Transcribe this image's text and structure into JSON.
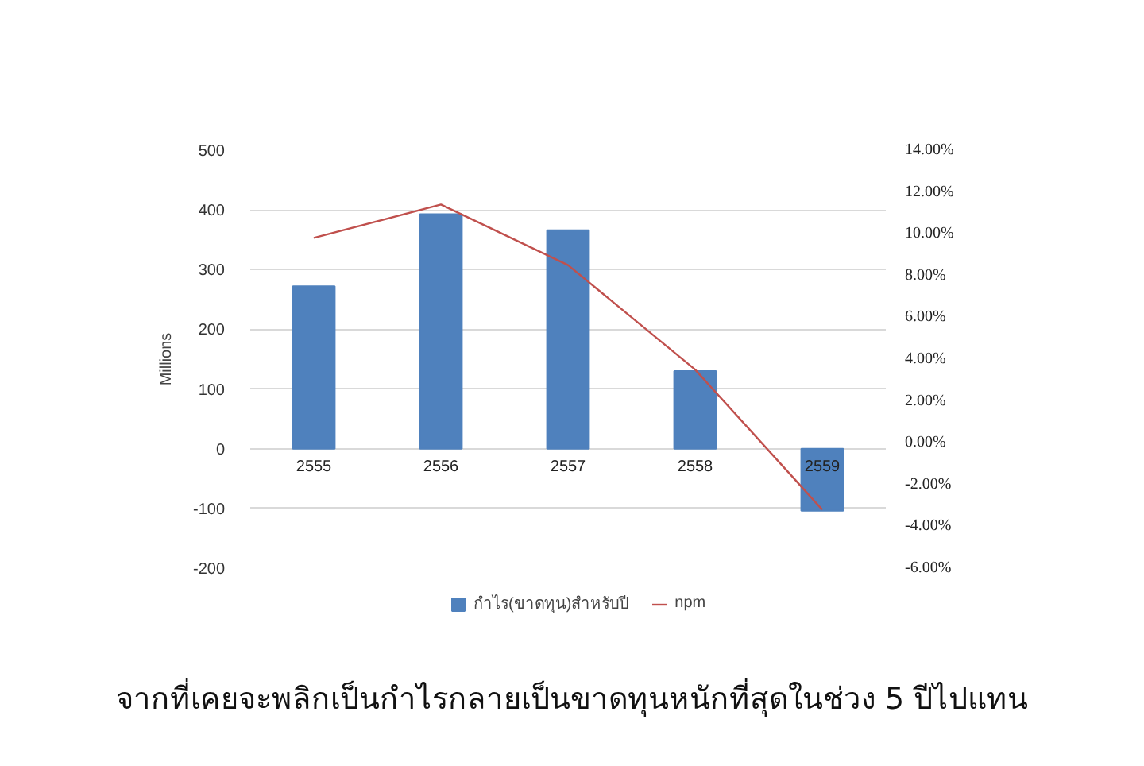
{
  "chart_data": {
    "type": "bar",
    "categories": [
      "2555",
      "2556",
      "2557",
      "2558",
      "2559"
    ],
    "ylabel": "Millions",
    "ylim": [
      -200,
      500
    ],
    "yticks": [
      -200,
      -100,
      0,
      100,
      200,
      300,
      400,
      500
    ],
    "y2lim": [
      -6,
      14
    ],
    "y2ticks": [
      {
        "value": -6,
        "label": "-6.00%"
      },
      {
        "value": -4,
        "label": "-4.00%"
      },
      {
        "value": -2,
        "label": "-2.00%"
      },
      {
        "value": 0,
        "label": "0.00%"
      },
      {
        "value": 2,
        "label": "2.00%"
      },
      {
        "value": 4,
        "label": "4.00%"
      },
      {
        "value": 6,
        "label": "6.00%"
      },
      {
        "value": 8,
        "label": "8.00%"
      },
      {
        "value": 10,
        "label": "10.00%"
      },
      {
        "value": 12,
        "label": "12.00%"
      },
      {
        "value": 14,
        "label": "14.00%"
      }
    ],
    "series": [
      {
        "name": "กำไร(ขาดทุน)สำหรับปี",
        "color": "#4f81bd",
        "values": [
          272,
          393,
          366,
          130,
          -104
        ]
      },
      {
        "name": "npm",
        "type": "line",
        "axis": "y2",
        "color": "#c0504d",
        "values": [
          9.8,
          11.4,
          8.5,
          3.5,
          -3.2
        ]
      }
    ],
    "grid": "y",
    "legend": "bottom",
    "annotations": [
      "จากที่เคยจะพลิกเป็นกำไรกลายเป็นขาดทุนหนักที่สุดในช่วง 5 ปีไปแทน"
    ]
  }
}
